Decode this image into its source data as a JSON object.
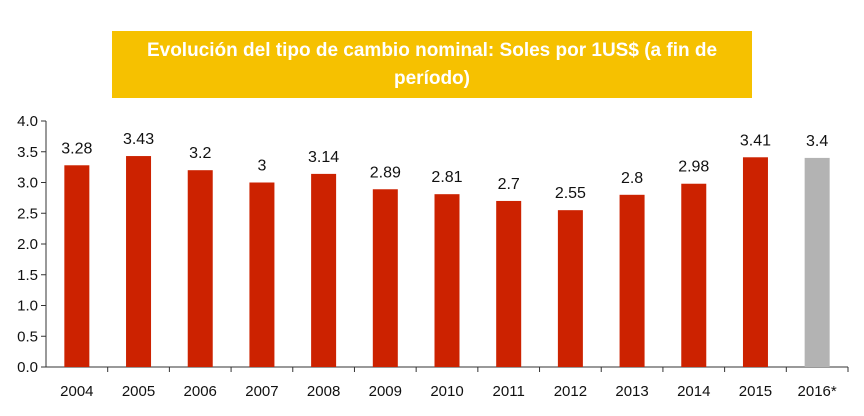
{
  "chart_data": {
    "type": "bar",
    "title": "Evolución del tipo de cambio nominal: Soles por 1US$ (a fin de período)",
    "categories": [
      "2004",
      "2005",
      "2006",
      "2007",
      "2008",
      "2009",
      "2010",
      "2011",
      "2012",
      "2013",
      "2014",
      "2015",
      "2016*"
    ],
    "values": [
      3.28,
      3.43,
      3.2,
      3,
      3.14,
      2.89,
      2.81,
      2.7,
      2.55,
      2.8,
      2.98,
      3.41,
      3.4
    ],
    "value_labels": [
      "3.28",
      "3.43",
      "3.2",
      "3",
      "3.14",
      "2.89",
      "2.81",
      "2.7",
      "2.55",
      "2.8",
      "2.98",
      "3.41",
      "3.4"
    ],
    "ylim": [
      0,
      4.0
    ],
    "yticks": [
      "0.0",
      "0.5",
      "1.0",
      "1.5",
      "2.0",
      "2.5",
      "3.0",
      "3.5",
      "4.0"
    ],
    "grid": false,
    "legend": "none",
    "colors": {
      "bar": "#cc2200",
      "highlight": "#b3b3b3",
      "title_bg": "#f6c100"
    },
    "highlight_categories": [
      "2016*"
    ]
  }
}
